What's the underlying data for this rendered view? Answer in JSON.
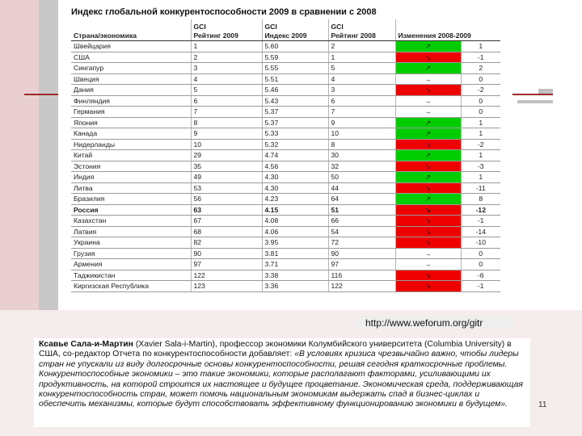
{
  "table": {
    "title": "Индекс глобальной конкурентоспособности 2009 в сравнении с 2008",
    "headers": {
      "country": "Страна/экономика",
      "rank2009_top": "GCI",
      "rank2009_bottom": "Рейтинг 2009",
      "index2009_top": "GCI",
      "index2009_bottom": "Индекс 2009",
      "rank2008_top": "GCI",
      "rank2008_bottom": "Рейтинг 2008",
      "change": "Изменения 2008-2009"
    },
    "rows": [
      {
        "country": "Швейцария",
        "rank2009": "1",
        "index2009": "5.60",
        "rank2008": "2",
        "arrow": "↗",
        "change": "1",
        "status": "up"
      },
      {
        "country": "США",
        "rank2009": "2",
        "index2009": "5.59",
        "rank2008": "1",
        "arrow": "↘",
        "change": "-1",
        "status": "down"
      },
      {
        "country": "Сингапур",
        "rank2009": "3",
        "index2009": "5.55",
        "rank2008": "5",
        "arrow": "↗",
        "change": "2",
        "status": "up"
      },
      {
        "country": "Швеция",
        "rank2009": "4",
        "index2009": "5.51",
        "rank2008": "4",
        "arrow": "→",
        "change": "0",
        "status": "same"
      },
      {
        "country": "Дания",
        "rank2009": "5",
        "index2009": "5.46",
        "rank2008": "3",
        "arrow": "↘",
        "change": "-2",
        "status": "down"
      },
      {
        "country": "Финляндия",
        "rank2009": "6",
        "index2009": "5.43",
        "rank2008": "6",
        "arrow": "→",
        "change": "0",
        "status": "same"
      },
      {
        "country": "Германия",
        "rank2009": "7",
        "index2009": "5.37",
        "rank2008": "7",
        "arrow": "→",
        "change": "0",
        "status": "same"
      },
      {
        "country": "Япония",
        "rank2009": "8",
        "index2009": "5.37",
        "rank2008": "9",
        "arrow": "↗",
        "change": "1",
        "status": "up"
      },
      {
        "country": "Канада",
        "rank2009": "9",
        "index2009": "5.33",
        "rank2008": "10",
        "arrow": "↗",
        "change": "1",
        "status": "up"
      },
      {
        "country": "Нидерланды",
        "rank2009": "10",
        "index2009": "5.32",
        "rank2008": "8",
        "arrow": "↘",
        "change": "-2",
        "status": "down"
      },
      {
        "country": "Китай",
        "rank2009": "29",
        "index2009": "4.74",
        "rank2008": "30",
        "arrow": "↗",
        "change": "1",
        "status": "up"
      },
      {
        "country": "Эстония",
        "rank2009": "35",
        "index2009": "4.56",
        "rank2008": "32",
        "arrow": "↘",
        "change": "-3",
        "status": "down"
      },
      {
        "country": "Индия",
        "rank2009": "49",
        "index2009": "4.30",
        "rank2008": "50",
        "arrow": "↗",
        "change": "1",
        "status": "up"
      },
      {
        "country": "Литва",
        "rank2009": "53",
        "index2009": "4.30",
        "rank2008": "44",
        "arrow": "↘",
        "change": "-11",
        "status": "down"
      },
      {
        "country": "Бразилия",
        "rank2009": "56",
        "index2009": "4.23",
        "rank2008": "64",
        "arrow": "↗",
        "change": "8",
        "status": "up"
      },
      {
        "country": "Россия",
        "rank2009": "63",
        "index2009": "4.15",
        "rank2008": "51",
        "arrow": "↘",
        "change": "-12",
        "status": "down",
        "bold": true
      },
      {
        "country": "Казахстан",
        "rank2009": "67",
        "index2009": "4.08",
        "rank2008": "66",
        "arrow": "↘",
        "change": "-1",
        "status": "down"
      },
      {
        "country": "Латвия",
        "rank2009": "68",
        "index2009": "4.06",
        "rank2008": "54",
        "arrow": "↘",
        "change": "-14",
        "status": "down"
      },
      {
        "country": "Украина",
        "rank2009": "82",
        "index2009": "3.95",
        "rank2008": "72",
        "arrow": "↘",
        "change": "-10",
        "status": "down"
      },
      {
        "country": "Грузия",
        "rank2009": "90",
        "index2009": "3.81",
        "rank2008": "90",
        "arrow": "→",
        "change": "0",
        "status": "same"
      },
      {
        "country": "Армения",
        "rank2009": "97",
        "index2009": "3.71",
        "rank2008": "97",
        "arrow": "→",
        "change": "0",
        "status": "same"
      },
      {
        "country": "Таджикистан",
        "rank2009": "122",
        "index2009": "3.38",
        "rank2008": "116",
        "arrow": "↘",
        "change": "-6",
        "status": "down"
      },
      {
        "country": "Киргизская Республика",
        "rank2009": "123",
        "index2009": "3.36",
        "rank2008": "122",
        "arrow": "↘",
        "change": "-1",
        "status": "down"
      }
    ]
  },
  "source_url": "http://www.weforum.org/gitr",
  "quote": {
    "author": "Ксавье Сала-и-Мартин",
    "intro": " (Xavier Sala-i-Martin), профессор экономики Колумбийского университета (Columbia University) в США, со-редактор Отчета по конкурентоспособности добавляет: ",
    "body": "«В условиях кризиса чрезвычайно важно, чтобы лидеры стран не упускали из виду долгосрочные основы конкурентоспособности, решая сегодня краткосрочные проблемы. Конкурентоспособные экономики – это такие экономики, которые располагают факторами, усиливающими их продуктивность, на которой строится их настоящее и будущее процветание. Экономическая среда, поддерживающая конкурентоспособность стран, может помочь национальным экономикам выдержать спад в бизнес-циклах и обеспечить механизмы, которые будут способствовать эффективному функционированию экономики в будущем»."
  },
  "page_number": "11",
  "colors": {
    "up": "#00cc00",
    "down": "#ee0000",
    "accent_line": "#9c2a2a"
  }
}
